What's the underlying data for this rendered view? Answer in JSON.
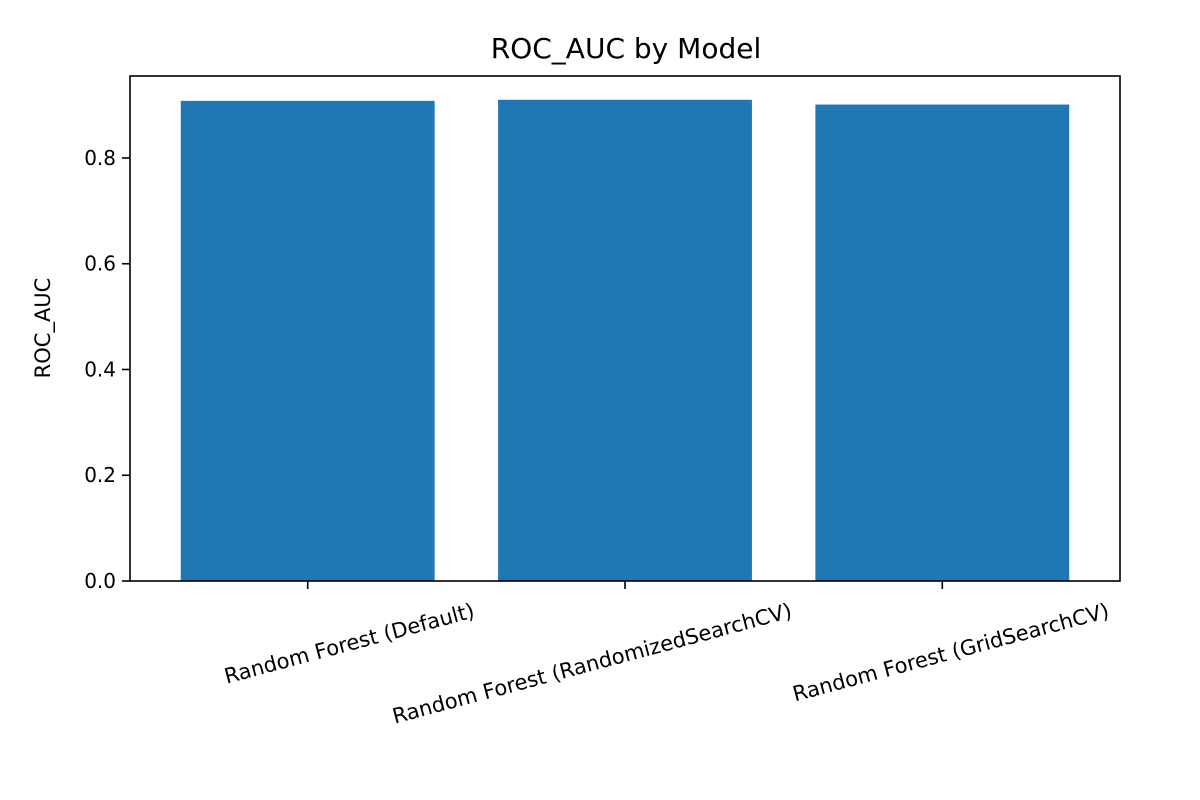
{
  "chart_data": {
    "type": "bar",
    "title": "ROC_AUC by Model",
    "xlabel": "",
    "ylabel": "ROC_AUC",
    "categories": [
      "Random Forest (Default)",
      "Random Forest (RandomizedSearchCV)",
      "Random Forest (GridSearchCV)"
    ],
    "values": [
      0.908,
      0.91,
      0.901
    ],
    "ylim": [
      0,
      0.955
    ],
    "yticks": [
      0.0,
      0.2,
      0.4,
      0.6,
      0.8
    ],
    "ytick_labels": [
      "0.0",
      "0.2",
      "0.4",
      "0.6",
      "0.8"
    ],
    "bar_color": "#1f77b4",
    "grid": false,
    "legend": "none"
  }
}
